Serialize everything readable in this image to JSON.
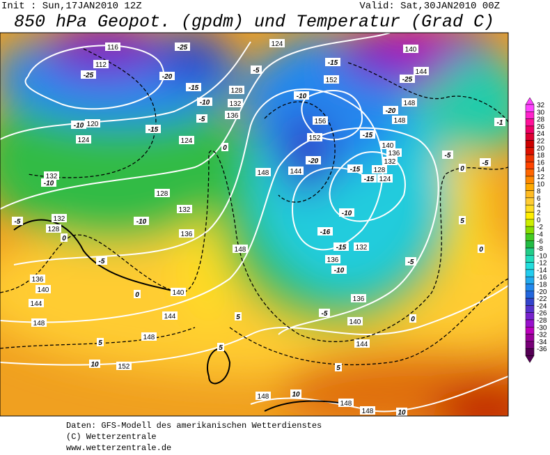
{
  "header": {
    "init": "Init : Sun,17JAN2010 12Z",
    "valid": "Valid: Sat,30JAN2010 00Z",
    "title": "850 hPa Geopot. (gpdm) und Temperatur (Grad C)"
  },
  "colorbar": {
    "labels": [
      32,
      30,
      28,
      26,
      24,
      22,
      20,
      18,
      16,
      14,
      12,
      10,
      8,
      6,
      4,
      2,
      0,
      -2,
      -4,
      -6,
      -8,
      -10,
      -12,
      -14,
      -16,
      -18,
      -20,
      -22,
      -24,
      -26,
      -28,
      -30,
      -32,
      -34,
      -36
    ],
    "colors": [
      "#ff44ff",
      "#ff22cc",
      "#ff1199",
      "#ee0066",
      "#dd0033",
      "#cc0000",
      "#dd1100",
      "#ee3300",
      "#ff4400",
      "#ff6600",
      "#ff8800",
      "#ffaa00",
      "#ffbb22",
      "#ffcc33",
      "#ffdd22",
      "#ffee00",
      "#ccee00",
      "#88dd00",
      "#44cc22",
      "#22bb44",
      "#22cc88",
      "#22ddbb",
      "#22dddd",
      "#22ccee",
      "#22aaee",
      "#2288ee",
      "#2266dd",
      "#3344cc",
      "#5533cc",
      "#7722cc",
      "#9911cc",
      "#bb00bb",
      "#990099",
      "#770077",
      "#550055"
    ]
  },
  "map_labels": [
    "116",
    "112",
    "-25",
    "-25",
    "-20",
    "-15",
    "-10",
    "128",
    "132",
    "136",
    "-5",
    "120",
    "-10",
    "-15",
    "124",
    "124",
    "0",
    "132",
    "-10",
    "128",
    "132",
    "-5",
    "132",
    "128",
    "0",
    "-10",
    "136",
    "-5",
    "136",
    "140",
    "144",
    "140",
    "0",
    "144",
    "148",
    "148",
    "5",
    "10",
    "152",
    "5",
    "5",
    "148",
    "148",
    "124",
    "-5",
    "-15",
    "152",
    "-10",
    "156",
    "152",
    "-20",
    "144",
    "140",
    "136",
    "132",
    "128",
    "-15",
    "-15",
    "124",
    "-10",
    "-16",
    "-15",
    "132",
    "136",
    "-10",
    "136",
    "-5",
    "140",
    "0",
    "144",
    "5",
    "-5",
    "0",
    "-5",
    "-5",
    "5",
    "0",
    "140",
    "144",
    "-25",
    "148",
    "-20",
    "148",
    "-15",
    "148",
    "10",
    "148",
    "148",
    "10",
    "-1"
  ],
  "footer": {
    "lines": [
      "Daten: GFS-Modell des amerikanischen Wetterdienstes",
      "(C) Wetterzentrale",
      "www.wetterzentrale.de"
    ]
  }
}
